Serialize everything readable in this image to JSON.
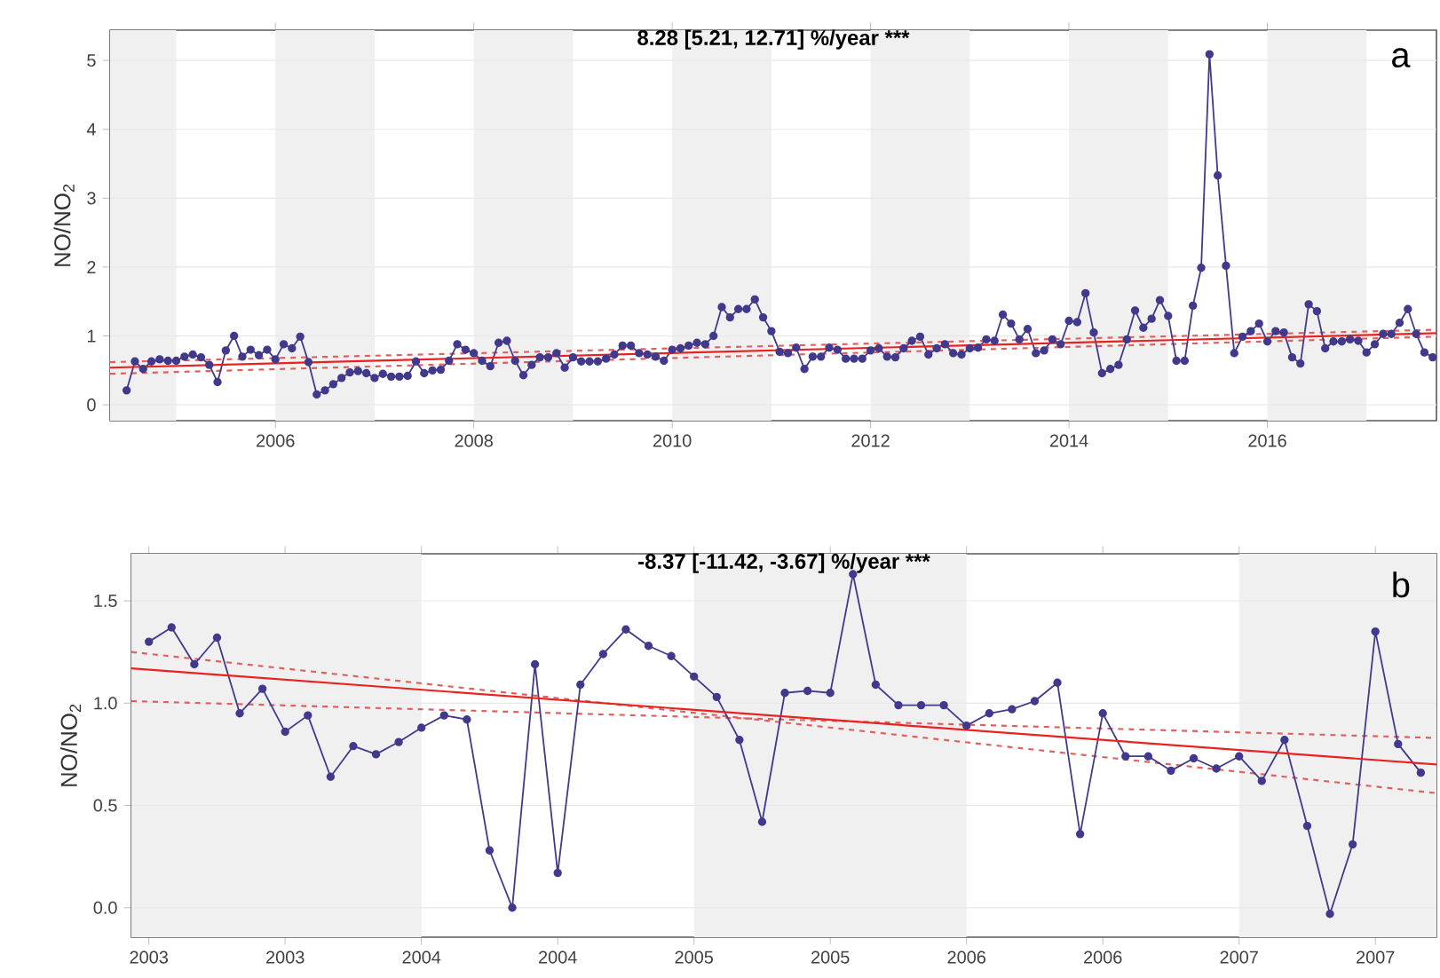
{
  "chart_data": [
    {
      "type": "line",
      "title": "8.28 [5.21, 12.71] %/year ***",
      "ylabel": "NO/NO$_{2}$",
      "annotations": [
        "a"
      ],
      "xlim": [
        "2004-05",
        "2017-09-15"
      ],
      "ylim": [
        -0.23,
        5.44
      ],
      "xticks": [
        "2006",
        "2008",
        "2010",
        "2012",
        "2014",
        "2016"
      ],
      "yticks": [
        0,
        1,
        2,
        3,
        4,
        5
      ],
      "grid": "y",
      "bands": [
        {
          "axis": "x",
          "from": "2004-05",
          "to": "2005",
          "color": "#f0f0f0"
        },
        {
          "axis": "x",
          "from": "2006",
          "to": "2007",
          "color": "#f0f0f0"
        },
        {
          "axis": "x",
          "from": "2008",
          "to": "2009",
          "color": "#f0f0f0"
        },
        {
          "axis": "x",
          "from": "2010",
          "to": "2011",
          "color": "#f0f0f0"
        },
        {
          "axis": "x",
          "from": "2012",
          "to": "2013",
          "color": "#f0f0f0"
        },
        {
          "axis": "x",
          "from": "2014",
          "to": "2015",
          "color": "#f0f0f0"
        },
        {
          "axis": "x",
          "from": "2016",
          "to": "2017",
          "color": "#f0f0f0"
        }
      ],
      "series": [
        {
          "color": "#e06060",
          "line_style": "dashed",
          "marker": "none",
          "x": [
            "2004-05",
            "2017-09-15"
          ],
          "values": [
            0.62,
            1.09
          ]
        },
        {
          "color": "#e06060",
          "line_style": "dashed",
          "marker": "none",
          "x": [
            "2004-05",
            "2017-09-15"
          ],
          "values": [
            0.45,
            0.99
          ]
        },
        {
          "color": "#41398c",
          "line_style": "solid",
          "marker": "circle",
          "x": [
            "2004-07",
            "2004-08",
            "2004-09",
            "2004-10",
            "2004-11",
            "2004-12",
            "2005-01",
            "2005-02",
            "2005-03",
            "2005-04",
            "2005-05",
            "2005-06",
            "2005-07",
            "2005-08",
            "2005-09",
            "2005-10",
            "2005-11",
            "2005-12",
            "2006-01",
            "2006-02",
            "2006-03",
            "2006-04",
            "2006-05",
            "2006-06",
            "2006-07",
            "2006-08",
            "2006-09",
            "2006-10",
            "2006-11",
            "2006-12",
            "2007-01",
            "2007-02",
            "2007-03",
            "2007-04",
            "2007-05",
            "2007-06",
            "2007-07",
            "2007-08",
            "2007-09",
            "2007-10",
            "2007-11",
            "2007-12",
            "2008-01",
            "2008-02",
            "2008-03",
            "2008-04",
            "2008-05",
            "2008-06",
            "2008-07",
            "2008-08",
            "2008-09",
            "2008-10",
            "2008-11",
            "2008-12",
            "2009-01",
            "2009-02",
            "2009-03",
            "2009-04",
            "2009-05",
            "2009-06",
            "2009-07",
            "2009-08",
            "2009-09",
            "2009-10",
            "2009-11",
            "2009-12",
            "2010-01",
            "2010-02",
            "2010-03",
            "2010-04",
            "2010-05",
            "2010-06",
            "2010-07",
            "2010-08",
            "2010-09",
            "2010-10",
            "2010-11",
            "2010-12",
            "2011-01",
            "2011-02",
            "2011-03",
            "2011-04",
            "2011-05",
            "2011-06",
            "2011-07",
            "2011-08",
            "2011-09",
            "2011-10",
            "2011-11",
            "2011-12",
            "2012-01",
            "2012-02",
            "2012-03",
            "2012-04",
            "2012-05",
            "2012-06",
            "2012-07",
            "2012-08",
            "2012-09",
            "2012-10",
            "2012-11",
            "2012-12",
            "2013-01",
            "2013-02",
            "2013-03",
            "2013-04",
            "2013-05",
            "2013-06",
            "2013-07",
            "2013-08",
            "2013-09",
            "2013-10",
            "2013-11",
            "2013-12",
            "2014-01",
            "2014-02",
            "2014-03",
            "2014-04",
            "2014-05",
            "2014-06",
            "2014-07",
            "2014-08",
            "2014-09",
            "2014-10",
            "2014-11",
            "2014-12",
            "2015-01",
            "2015-02",
            "2015-03",
            "2015-04",
            "2015-05",
            "2015-06",
            "2015-07",
            "2015-08",
            "2015-09",
            "2015-10",
            "2015-11",
            "2015-12",
            "2016-01",
            "2016-02",
            "2016-03",
            "2016-04",
            "2016-05",
            "2016-06",
            "2016-07",
            "2016-08",
            "2016-09",
            "2016-10",
            "2016-11",
            "2016-12",
            "2017-01",
            "2017-02",
            "2017-03",
            "2017-04",
            "2017-05",
            "2017-06",
            "2017-07",
            "2017-08",
            "2017-09"
          ],
          "values": [
            0.21,
            0.63,
            0.52,
            0.63,
            0.66,
            0.64,
            0.64,
            0.7,
            0.73,
            0.69,
            0.58,
            0.33,
            0.79,
            1.0,
            0.7,
            0.8,
            0.72,
            0.8,
            0.66,
            0.88,
            0.82,
            0.99,
            0.62,
            0.15,
            0.21,
            0.3,
            0.39,
            0.47,
            0.49,
            0.46,
            0.39,
            0.45,
            0.41,
            0.41,
            0.42,
            0.63,
            0.46,
            0.5,
            0.51,
            0.64,
            0.88,
            0.8,
            0.75,
            0.64,
            0.56,
            0.9,
            0.93,
            0.64,
            0.43,
            0.58,
            0.69,
            0.69,
            0.75,
            0.54,
            0.69,
            0.63,
            0.63,
            0.63,
            0.67,
            0.73,
            0.86,
            0.86,
            0.75,
            0.73,
            0.7,
            0.64,
            0.8,
            0.82,
            0.86,
            0.9,
            0.88,
            1.0,
            1.42,
            1.27,
            1.39,
            1.39,
            1.53,
            1.27,
            1.07,
            0.77,
            0.75,
            0.83,
            0.52,
            0.7,
            0.7,
            0.83,
            0.8,
            0.67,
            0.67,
            0.67,
            0.79,
            0.82,
            0.7,
            0.69,
            0.82,
            0.93,
            0.99,
            0.73,
            0.82,
            0.88,
            0.75,
            0.73,
            0.82,
            0.83,
            0.95,
            0.93,
            1.31,
            1.18,
            0.95,
            1.1,
            0.75,
            0.79,
            0.95,
            0.88,
            1.22,
            1.2,
            1.62,
            1.05,
            0.46,
            0.52,
            0.58,
            0.95,
            1.37,
            1.12,
            1.25,
            1.52,
            1.29,
            0.64,
            0.64,
            1.44,
            1.99,
            5.09,
            3.33,
            2.02,
            0.75,
            0.99,
            1.07,
            1.18,
            0.92,
            1.07,
            1.05,
            0.69,
            0.6,
            1.46,
            1.36,
            0.82,
            0.92,
            0.92,
            0.95,
            0.93,
            0.76,
            0.88,
            1.03,
            1.03,
            1.19,
            1.39,
            1.03,
            0.76,
            0.69
          ]
        },
        {
          "color": "#e8231f",
          "line_style": "solid",
          "marker": "none",
          "x": [
            "2004-05",
            "2017-09-15"
          ],
          "values": [
            0.54,
            1.04
          ]
        }
      ]
    },
    {
      "type": "line",
      "title": "-8.37 [-11.42, -3.67] %/year ***",
      "ylabel": "NO/NO$_{2}$",
      "annotations": [
        "b"
      ],
      "xlim": [
        "2002-12-08",
        "2007-09-22"
      ],
      "ylim": [
        -0.144,
        1.73
      ],
      "xticks": [
        {
          "value": "2003-01",
          "label": "2003"
        },
        {
          "value": "2003-07",
          "label": "2003"
        },
        {
          "value": "2004-01",
          "label": "2004"
        },
        {
          "value": "2004-07",
          "label": "2004"
        },
        {
          "value": "2005-01",
          "label": "2005"
        },
        {
          "value": "2005-07",
          "label": "2005"
        },
        {
          "value": "2006-01",
          "label": "2006"
        },
        {
          "value": "2006-07",
          "label": "2006"
        },
        {
          "value": "2007-01",
          "label": "2007"
        },
        {
          "value": "2007-07",
          "label": "2007"
        }
      ],
      "yticks": [
        {
          "value": 0,
          "label": "0.0"
        },
        0.5,
        {
          "value": 1,
          "label": "1.0"
        },
        1.5
      ],
      "grid": "y",
      "bands": [
        {
          "axis": "x",
          "from": "2002-12-08",
          "to": "2004",
          "color": "#f0f0f0"
        },
        {
          "axis": "x",
          "from": "2005",
          "to": "2006",
          "color": "#f0f0f0"
        },
        {
          "axis": "x",
          "from": "2007",
          "to": "2007-09-22",
          "color": "#f0f0f0"
        }
      ],
      "series": [
        {
          "color": "#e06060",
          "line_style": "dashed",
          "marker": "none",
          "x": [
            "2002-12-08",
            "2007-09-22"
          ],
          "values": [
            1.25,
            0.56
          ]
        },
        {
          "color": "#e06060",
          "line_style": "dashed",
          "marker": "none",
          "x": [
            "2002-12-08",
            "2007-09-22"
          ],
          "values": [
            1.01,
            0.83
          ]
        },
        {
          "color": "#41398c",
          "line_style": "solid",
          "marker": "circle",
          "x": [
            "2003-01",
            "2003-02",
            "2003-03",
            "2003-04",
            "2003-05",
            "2003-06",
            "2003-07",
            "2003-08",
            "2003-09",
            "2003-10",
            "2003-11",
            "2003-12",
            "2004-01",
            "2004-02",
            "2004-03",
            "2004-04",
            "2004-05",
            "2004-06",
            "2004-07",
            "2004-08",
            "2004-09",
            "2004-10",
            "2004-11",
            "2004-12",
            "2005-01",
            "2005-02",
            "2005-03",
            "2005-04",
            "2005-05",
            "2005-06",
            "2005-07",
            "2005-08",
            "2005-09",
            "2005-10",
            "2005-11",
            "2005-12",
            "2006-01",
            "2006-02",
            "2006-03",
            "2006-04",
            "2006-05",
            "2006-06",
            "2006-07",
            "2006-08",
            "2006-09",
            "2006-10",
            "2006-11",
            "2006-12",
            "2007-01",
            "2007-02",
            "2007-03",
            "2007-04",
            "2007-05",
            "2007-06",
            "2007-07",
            "2007-08",
            "2007-09"
          ],
          "values": [
            1.3,
            1.37,
            1.19,
            1.32,
            0.95,
            1.07,
            0.86,
            0.94,
            0.64,
            0.79,
            0.75,
            0.81,
            0.88,
            0.94,
            0.92,
            0.28,
            0.0,
            1.19,
            0.17,
            1.09,
            1.24,
            1.36,
            1.28,
            1.23,
            1.13,
            1.03,
            0.82,
            0.42,
            1.05,
            1.06,
            1.05,
            1.63,
            1.09,
            0.99,
            0.99,
            0.99,
            0.89,
            0.95,
            0.97,
            1.01,
            1.1,
            0.36,
            0.95,
            0.74,
            0.74,
            0.67,
            0.73,
            0.68,
            0.74,
            0.62,
            0.82,
            0.4,
            -0.03,
            0.31,
            1.35,
            0.8,
            0.66
          ]
        },
        {
          "color": "#e8231f",
          "line_style": "solid",
          "marker": "none",
          "x": [
            "2002-12-08",
            "2007-09-22"
          ],
          "values": [
            1.17,
            0.7
          ]
        }
      ]
    }
  ]
}
